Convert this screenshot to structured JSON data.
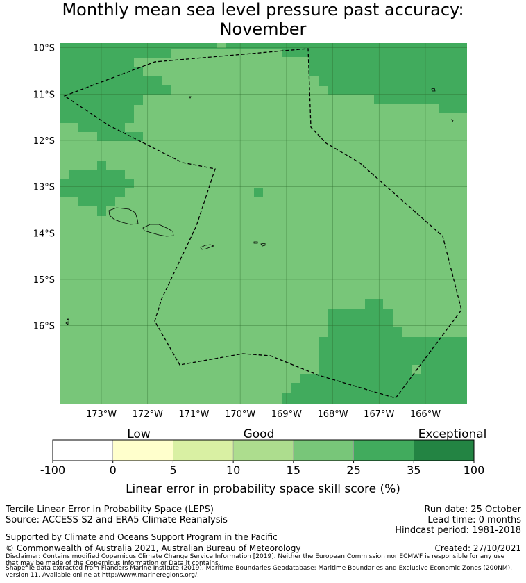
{
  "title": {
    "line1": "Monthly mean sea level pressure past accuracy:",
    "line2": "November"
  },
  "map": {
    "lat_labels": [
      "10°S",
      "11°S",
      "12°S",
      "13°S",
      "14°S",
      "15°S",
      "16°S"
    ],
    "lon_labels": [
      "173°W",
      "172°W",
      "171°W",
      "170°W",
      "169°W",
      "168°W",
      "167°W",
      "166°W"
    ],
    "lon_range": [
      -173.9,
      -165.1
    ],
    "lat_range": [
      -17.7,
      -9.9
    ],
    "category_colors": {
      "good": "#78c679",
      "better": "#41ab5d",
      "border_line": "#000000",
      "grid_line": "#2d6b2d"
    }
  },
  "colorbar": {
    "category_labels": [
      "Low",
      "Good",
      "Exceptional"
    ],
    "tick_labels": [
      "-100",
      "0",
      "5",
      "10",
      "15",
      "25",
      "35",
      "100"
    ],
    "segment_colors": [
      "#ffffff",
      "#ffffcc",
      "#d9f0a3",
      "#addd8e",
      "#78c679",
      "#41ab5d",
      "#238443"
    ],
    "axis_label": "Linear error in probability space skill score (%)"
  },
  "footer": {
    "product": "Tercile Linear Error in Probability Space (LEPS)",
    "source": "Source: ACCESS-S2 and ERA5 Climate Reanalysis",
    "run_date": "Run date: 25 October",
    "lead_time": "Lead time: 0 months",
    "hindcast": "Hindcast period: 1981-2018",
    "support": "Supported by Climate and Oceans Support Program in the Pacific",
    "copyright": "© Commonwealth of Australia 2021, Australian Bureau of Meteorology",
    "created": "Created: 27/10/2021",
    "disclaimer_1": "Disclaimer: Contains modified Copernicus Climate Change Service Information [2019]. Neither the European Commission nor ECMWF is responsible for any use",
    "disclaimer_2": "that may be made of the Copernicus Information or Data it contains.",
    "shapefile_1": "Shapefile data extracted from Flanders Marine Institute (2019). Maritime Boundaries Geodatabase: Maritime Boundaries and Exclusive Economic Zones (200NM),",
    "shapefile_2": "version 11. Available online at http://www.marineregions.org/."
  }
}
